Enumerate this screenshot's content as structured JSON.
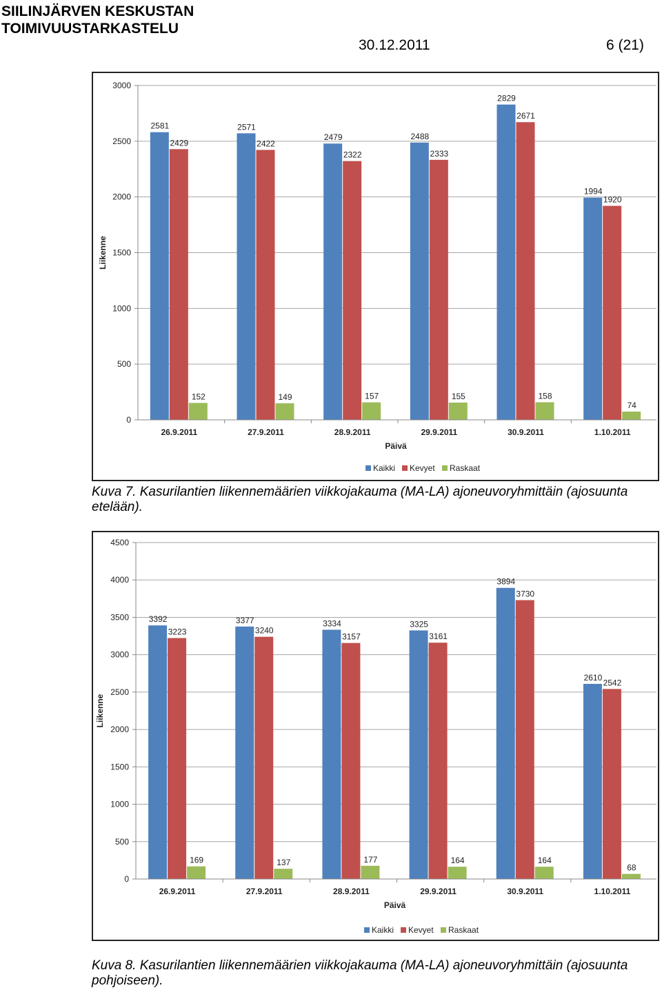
{
  "header": {
    "title_line1": "SIILINJÄRVEN KESKUSTAN",
    "title_line2": "TOIMIVUUSTARKASTELU",
    "date": "30.12.2011",
    "page": "6 (21)"
  },
  "captions": [
    {
      "line1": "Kuva 7. Kasurilantien liikennemäärien viikkojakauma (MA-LA) ajoneuvoryhmittäin (ajosuunta",
      "line2": "etelään)."
    },
    {
      "line1": "Kuva 8. Kasurilantien liikennemäärien viikkojakauma (MA-LA) ajoneuvoryhmittäin (ajosuunta",
      "line2": "pohjoiseen)."
    }
  ],
  "colors": {
    "Kaikki": "#4f81bd",
    "Kevyet": "#c0504d",
    "Raskaat": "#9bbb59",
    "grid": "#a6a6a6"
  },
  "chart_data": [
    {
      "type": "bar",
      "categories": [
        "26.9.2011",
        "27.9.2011",
        "28.9.2011",
        "29.9.2011",
        "30.9.2011",
        "1.10.2011"
      ],
      "series": [
        {
          "name": "Kaikki",
          "values": [
            2581,
            2571,
            2479,
            2488,
            2829,
            1994
          ]
        },
        {
          "name": "Kevyet",
          "values": [
            2429,
            2422,
            2322,
            2333,
            2671,
            1920
          ]
        },
        {
          "name": "Raskaat",
          "values": [
            152,
            149,
            157,
            155,
            158,
            74
          ]
        }
      ],
      "xlabel": "Päivä",
      "ylabel": "Liikenne",
      "ylim": [
        0,
        3000
      ],
      "yticks": [
        0,
        500,
        1000,
        1500,
        2000,
        2500,
        3000
      ],
      "grid": true,
      "legend": "bottom"
    },
    {
      "type": "bar",
      "categories": [
        "26.9.2011",
        "27.9.2011",
        "28.9.2011",
        "29.9.2011",
        "30.9.2011",
        "1.10.2011"
      ],
      "series": [
        {
          "name": "Kaikki",
          "values": [
            3392,
            3377,
            3334,
            3325,
            3894,
            2610
          ]
        },
        {
          "name": "Kevyet",
          "values": [
            3223,
            3240,
            3157,
            3161,
            3730,
            2542
          ]
        },
        {
          "name": "Raskaat",
          "values": [
            169,
            137,
            177,
            164,
            164,
            68
          ]
        }
      ],
      "xlabel": "Päivä",
      "ylabel": "Liikenne",
      "ylim": [
        0,
        4500
      ],
      "yticks": [
        0,
        500,
        1000,
        1500,
        2000,
        2500,
        3000,
        3500,
        4000,
        4500
      ],
      "grid": true,
      "legend": "bottom"
    }
  ]
}
